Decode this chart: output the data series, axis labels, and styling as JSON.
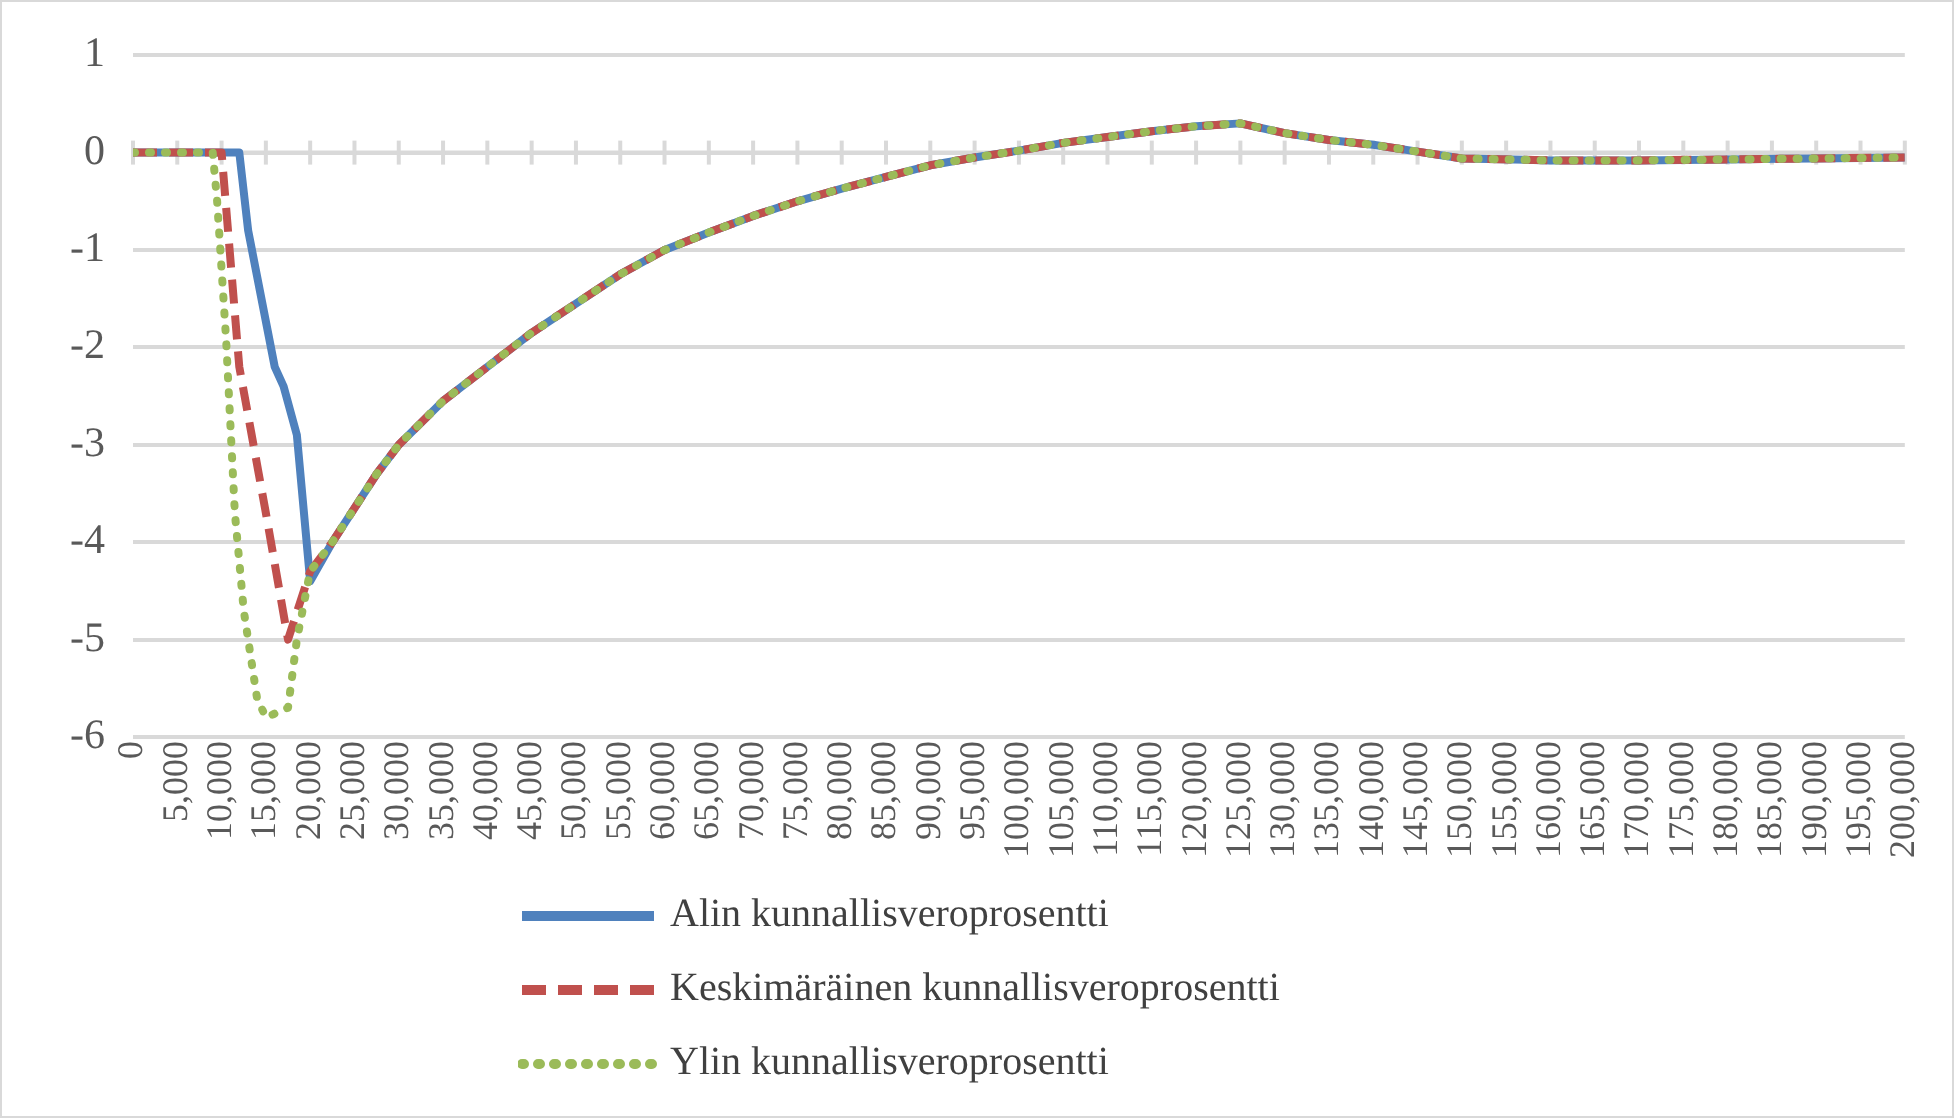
{
  "chart_data": {
    "type": "line",
    "xlim": [
      0,
      200000
    ],
    "ylim": [
      -6,
      1
    ],
    "yticks": [
      -6,
      -5,
      -4,
      -3,
      -2,
      -1,
      0,
      1
    ],
    "xticks": [
      0,
      {
        "value": 5000,
        "label": "5,000"
      },
      {
        "value": 10000,
        "label": "10,000"
      },
      {
        "value": 15000,
        "label": "15,000"
      },
      {
        "value": 20000,
        "label": "20,000"
      },
      {
        "value": 25000,
        "label": "25,000"
      },
      {
        "value": 30000,
        "label": "30,000"
      },
      {
        "value": 35000,
        "label": "35,000"
      },
      {
        "value": 40000,
        "label": "40,000"
      },
      {
        "value": 45000,
        "label": "45,000"
      },
      {
        "value": 50000,
        "label": "50,000"
      },
      {
        "value": 55000,
        "label": "55,000"
      },
      {
        "value": 60000,
        "label": "60,000"
      },
      {
        "value": 65000,
        "label": "65,000"
      },
      {
        "value": 70000,
        "label": "70,000"
      },
      {
        "value": 75000,
        "label": "75,000"
      },
      {
        "value": 80000,
        "label": "80,000"
      },
      {
        "value": 85000,
        "label": "85,000"
      },
      {
        "value": 90000,
        "label": "90,000"
      },
      {
        "value": 95000,
        "label": "95,000"
      },
      {
        "value": 100000,
        "label": "100,000"
      },
      {
        "value": 105000,
        "label": "105,000"
      },
      {
        "value": 110000,
        "label": "110,000"
      },
      {
        "value": 115000,
        "label": "115,000"
      },
      {
        "value": 120000,
        "label": "120,000"
      },
      {
        "value": 125000,
        "label": "125,000"
      },
      {
        "value": 130000,
        "label": "130,000"
      },
      {
        "value": 135000,
        "label": "135,000"
      },
      {
        "value": 140000,
        "label": "140,000"
      },
      {
        "value": 145000,
        "label": "145,000"
      },
      {
        "value": 150000,
        "label": "150,000"
      },
      {
        "value": 155000,
        "label": "155,000"
      },
      {
        "value": 160000,
        "label": "160,000"
      },
      {
        "value": 165000,
        "label": "165,000"
      },
      {
        "value": 170000,
        "label": "170,000"
      },
      {
        "value": 175000,
        "label": "175,000"
      },
      {
        "value": 180000,
        "label": "180,000"
      },
      {
        "value": 185000,
        "label": "185,000"
      },
      {
        "value": 190000,
        "label": "190,000"
      },
      {
        "value": 195000,
        "label": "195,000"
      },
      {
        "value": 200000,
        "label": "200,000"
      }
    ],
    "grid": "y",
    "legend": "bottom",
    "marker": "none",
    "series": [
      {
        "name": "Alin kunnallisveroprosentti",
        "color": "#4f81bd",
        "line_style": "solid",
        "x": [
          0,
          12000,
          13000,
          16000,
          17000,
          18500,
          20000,
          22500,
          25000,
          27500,
          30000,
          35000,
          40000,
          45000,
          50000,
          55000,
          60000,
          65000,
          70000,
          75000,
          80000,
          85000,
          90000,
          95000,
          100000,
          105000,
          110000,
          115000,
          120000,
          125000,
          130000,
          135000,
          140000,
          145000,
          150000,
          160000,
          170000,
          180000,
          190000,
          200000
        ],
        "values": [
          0,
          0,
          -0.8,
          -2.2,
          -2.4,
          -2.9,
          -4.4,
          -4.0,
          -3.65,
          -3.3,
          -3.0,
          -2.55,
          -2.2,
          -1.85,
          -1.55,
          -1.25,
          -1.0,
          -0.82,
          -0.65,
          -0.5,
          -0.37,
          -0.25,
          -0.13,
          -0.05,
          0.02,
          0.1,
          0.16,
          0.22,
          0.27,
          0.3,
          0.2,
          0.13,
          0.08,
          0.01,
          -0.06,
          -0.08,
          -0.08,
          -0.07,
          -0.06,
          -0.05
        ]
      },
      {
        "name": "Keskimäräinen kunnallisveroprosentti",
        "color": "#c0504d",
        "line_style": "dashed",
        "x": [
          0,
          10000,
          12000,
          15000,
          17500,
          20000,
          22500,
          25000,
          27500,
          30000,
          35000,
          40000,
          45000,
          50000,
          55000,
          60000,
          65000,
          70000,
          75000,
          80000,
          85000,
          90000,
          95000,
          100000,
          105000,
          110000,
          115000,
          120000,
          125000,
          130000,
          135000,
          140000,
          145000,
          150000,
          160000,
          170000,
          180000,
          190000,
          200000
        ],
        "values": [
          0,
          0,
          -2.2,
          -3.7,
          -5.0,
          -4.3,
          -4.0,
          -3.65,
          -3.3,
          -3.0,
          -2.55,
          -2.2,
          -1.85,
          -1.55,
          -1.25,
          -1.0,
          -0.82,
          -0.65,
          -0.5,
          -0.37,
          -0.25,
          -0.13,
          -0.05,
          0.02,
          0.1,
          0.16,
          0.22,
          0.27,
          0.3,
          0.2,
          0.13,
          0.08,
          0.01,
          -0.06,
          -0.08,
          -0.08,
          -0.07,
          -0.06,
          -0.05
        ]
      },
      {
        "name": "Ylin kunnallisveroprosentti",
        "color": "#9bbb59",
        "line_style": "dotted",
        "x": [
          0,
          9000,
          9500,
          10500,
          11500,
          12500,
          14000,
          15000,
          17500,
          18500,
          20000,
          22500,
          25000,
          27500,
          30000,
          35000,
          40000,
          45000,
          50000,
          55000,
          60000,
          65000,
          70000,
          75000,
          80000,
          85000,
          90000,
          95000,
          100000,
          105000,
          110000,
          115000,
          120000,
          125000,
          130000,
          135000,
          140000,
          145000,
          150000,
          160000,
          170000,
          180000,
          190000,
          200000
        ],
        "values": [
          0,
          0,
          -0.5,
          -1.9,
          -3.7,
          -4.7,
          -5.6,
          -5.8,
          -5.7,
          -5.0,
          -4.3,
          -4.0,
          -3.65,
          -3.3,
          -3.0,
          -2.55,
          -2.2,
          -1.85,
          -1.55,
          -1.25,
          -1.0,
          -0.82,
          -0.65,
          -0.5,
          -0.37,
          -0.25,
          -0.13,
          -0.05,
          0.02,
          0.1,
          0.16,
          0.22,
          0.27,
          0.3,
          0.2,
          0.13,
          0.08,
          0.01,
          -0.06,
          -0.08,
          -0.08,
          -0.07,
          -0.06,
          -0.05
        ]
      }
    ]
  }
}
